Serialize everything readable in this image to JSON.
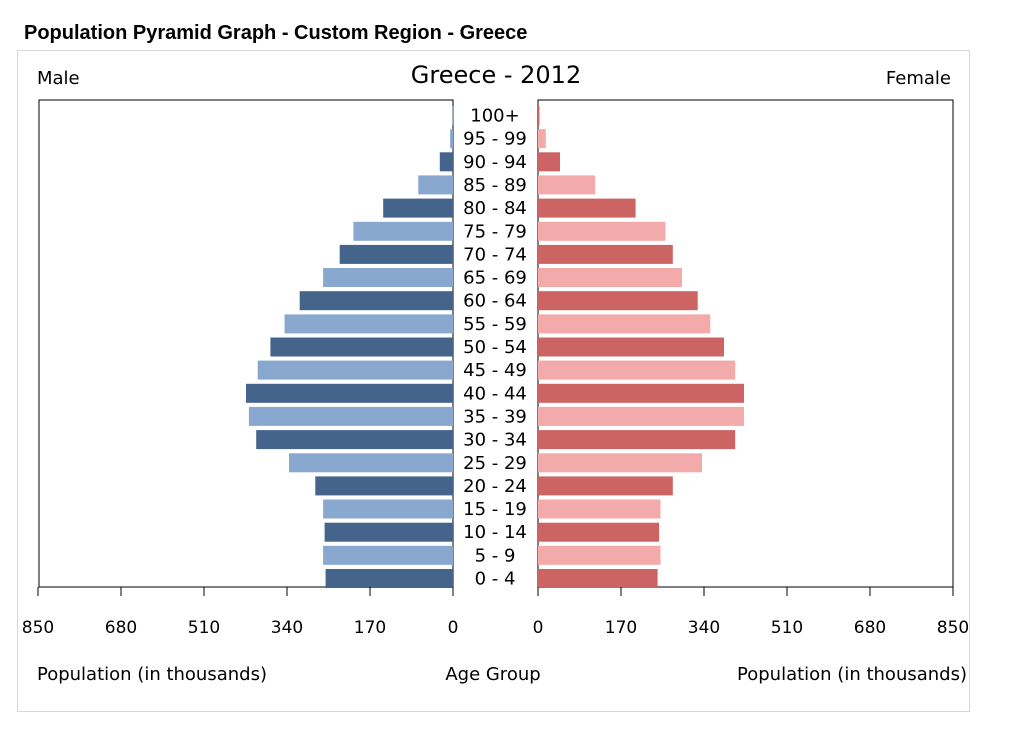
{
  "page": {
    "title": "Population Pyramid Graph - Custom Region - Greece"
  },
  "colors": {
    "male_dark": "#44648c",
    "male_light": "#88a8d0",
    "female_dark": "#cc6464",
    "female_light": "#f2aaaa"
  },
  "chart_data": {
    "type": "bar",
    "orientation": "horizontal-pyramid",
    "title": "Greece - 2012",
    "left_label": "Male",
    "right_label": "Female",
    "xlabel_left": "Population (in thousands)",
    "center_label": "Age Group",
    "xlabel_right": "Population (in thousands)",
    "xlim": [
      0,
      850
    ],
    "ticks_left": [
      "850",
      "680",
      "510",
      "340",
      "170",
      "0"
    ],
    "ticks_right": [
      "0",
      "170",
      "340",
      "510",
      "680",
      "850"
    ],
    "categories": [
      "100+",
      "95 - 99",
      "90 - 94",
      "85 - 89",
      "80 - 84",
      "75 - 79",
      "70 - 74",
      "65 - 69",
      "60 - 64",
      "55 - 59",
      "50 - 54",
      "45 - 49",
      "40 - 44",
      "35 - 39",
      "30 - 34",
      "25 - 29",
      "20 - 24",
      "15 - 19",
      "10 - 14",
      "5 - 9",
      "0 - 4"
    ],
    "series": [
      {
        "name": "Male",
        "values": [
          1,
          6,
          27,
          71,
          143,
          204,
          232,
          266,
          314,
          345,
          374,
          400,
          424,
          418,
          403,
          336,
          282,
          266,
          263,
          266,
          261
        ]
      },
      {
        "name": "Female",
        "values": [
          3,
          16,
          45,
          117,
          200,
          261,
          276,
          295,
          327,
          353,
          381,
          404,
          422,
          422,
          404,
          336,
          276,
          251,
          248,
          251,
          245
        ]
      }
    ]
  }
}
